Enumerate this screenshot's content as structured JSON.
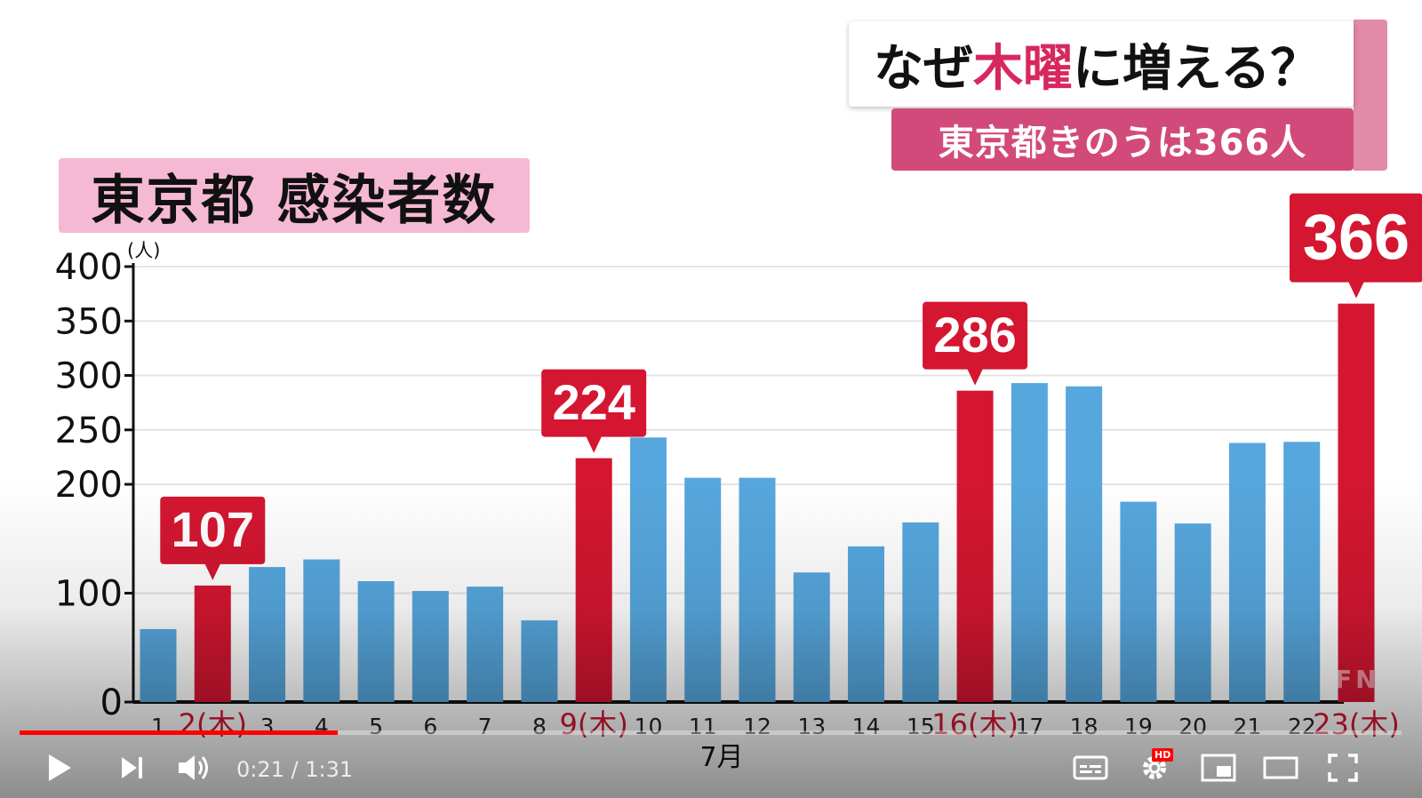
{
  "title": "東京都 感染者数",
  "headline": {
    "part1": "なぜ",
    "accent": "木曜",
    "part2": "に増える？"
  },
  "subheadline": "東京都きのうは366人",
  "watermark": "FNN",
  "colors": {
    "bar": "#56a7de",
    "highlight": "#d41631",
    "title_bg": "#f6b9d4",
    "sub_bg": "#d24a7a",
    "accent_text": "#d6285f"
  },
  "chart_data": {
    "type": "bar",
    "categories": [
      "1",
      "2(木)",
      "3",
      "4",
      "5",
      "6",
      "7",
      "8",
      "9(木)",
      "10",
      "11",
      "12",
      "13",
      "14",
      "15",
      "16(木)",
      "17",
      "18",
      "19",
      "20",
      "21",
      "22",
      "23(木)"
    ],
    "values": [
      67,
      107,
      124,
      131,
      111,
      102,
      106,
      75,
      224,
      243,
      206,
      206,
      119,
      143,
      165,
      286,
      293,
      290,
      184,
      164,
      238,
      239,
      366
    ],
    "highlighted": [
      "2(木)",
      "9(木)",
      "16(木)",
      "23(木)"
    ],
    "callouts": [
      {
        "category": "2(木)",
        "label": "107"
      },
      {
        "category": "9(木)",
        "label": "224"
      },
      {
        "category": "16(木)",
        "label": "286"
      },
      {
        "category": "23(木)",
        "label": "366"
      }
    ],
    "yticks": [
      0,
      100,
      200,
      250,
      300,
      350,
      400
    ],
    "ylim": [
      0,
      400
    ],
    "yunit": "(人)",
    "xlabel": "7月",
    "grid": true
  },
  "player": {
    "time": "0:21 / 1:31",
    "progress": 0.23,
    "hd_label": "HD",
    "icons": [
      "play-icon",
      "next-icon",
      "volume-icon",
      "subtitles-icon",
      "settings-icon",
      "miniplayer-icon",
      "theater-icon",
      "fullscreen-icon"
    ]
  }
}
